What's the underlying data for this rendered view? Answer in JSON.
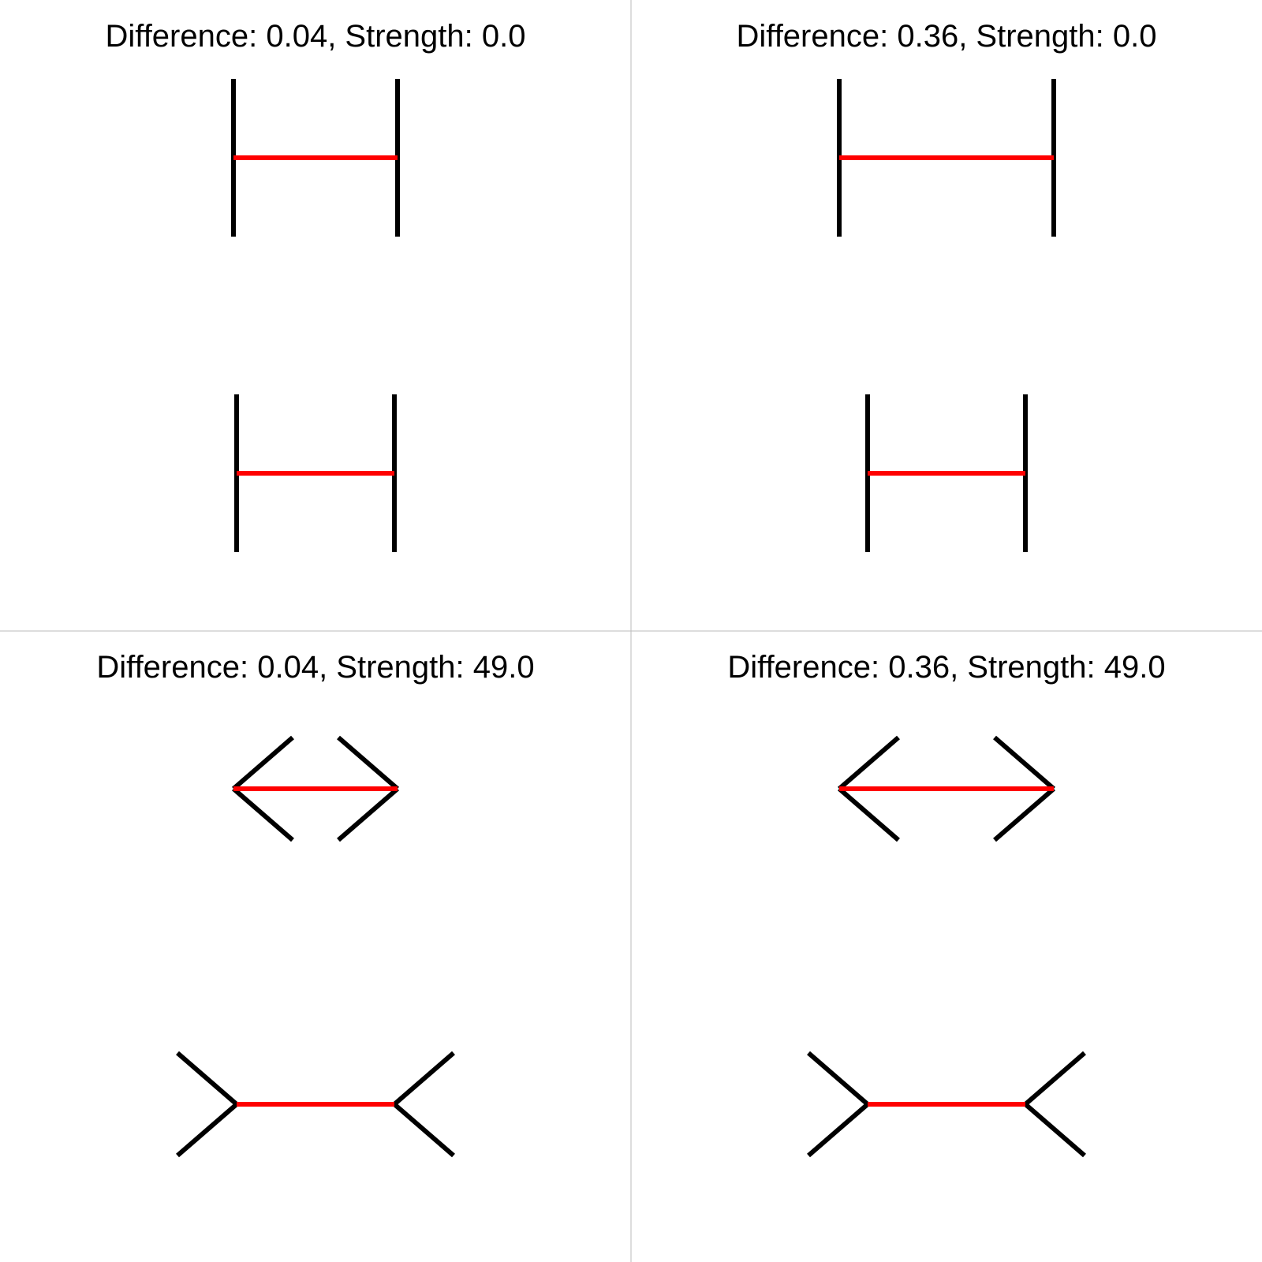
{
  "colors": {
    "background": "#ffffff",
    "grid": "#bbbbbb",
    "target_line": "#ff0000",
    "inducer_line": "#000000"
  },
  "panels": [
    {
      "title": "Difference: 0.04, Strength: 0.0",
      "difference": 0.04,
      "strength": 0.0,
      "inducer_style": "vertical-bars"
    },
    {
      "title": "Difference: 0.36, Strength: 0.0",
      "difference": 0.36,
      "strength": 0.0,
      "inducer_style": "vertical-bars"
    },
    {
      "title": "Difference: 0.04, Strength: 49.0",
      "difference": 0.04,
      "strength": 49.0,
      "inducer_style": "fins"
    },
    {
      "title": "Difference: 0.36, Strength: 49.0",
      "difference": 0.36,
      "strength": 49.0,
      "inducer_style": "fins"
    }
  ]
}
